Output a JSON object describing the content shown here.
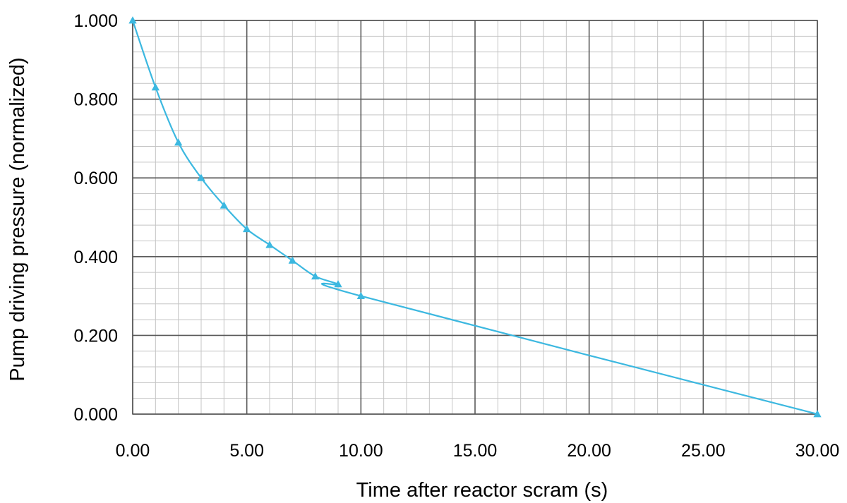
{
  "chart_data": {
    "type": "line",
    "xlabel": "Time after reactor scram (s)",
    "ylabel": "Pump driving pressure (normalized)",
    "xlim": [
      0,
      30
    ],
    "ylim": [
      0,
      1
    ],
    "x_ticks": [
      "0.00",
      "5.00",
      "10.00",
      "15.00",
      "20.00",
      "25.00",
      "30.00"
    ],
    "y_ticks": [
      "0.000",
      "0.200",
      "0.400",
      "0.600",
      "0.800",
      "1.000"
    ],
    "x_minor_step": 1,
    "y_minor_step": 0.04,
    "grid": true,
    "legend": "none",
    "series": [
      {
        "color": "#3cb8e0",
        "marker": "triangle",
        "x": [
          0,
          1,
          2,
          3,
          4,
          5,
          6,
          7,
          8,
          9,
          10,
          30
        ],
        "y": [
          1.0,
          0.83,
          0.69,
          0.6,
          0.53,
          0.47,
          0.43,
          0.39,
          0.35,
          0.33,
          0.3,
          0.0
        ]
      }
    ]
  }
}
